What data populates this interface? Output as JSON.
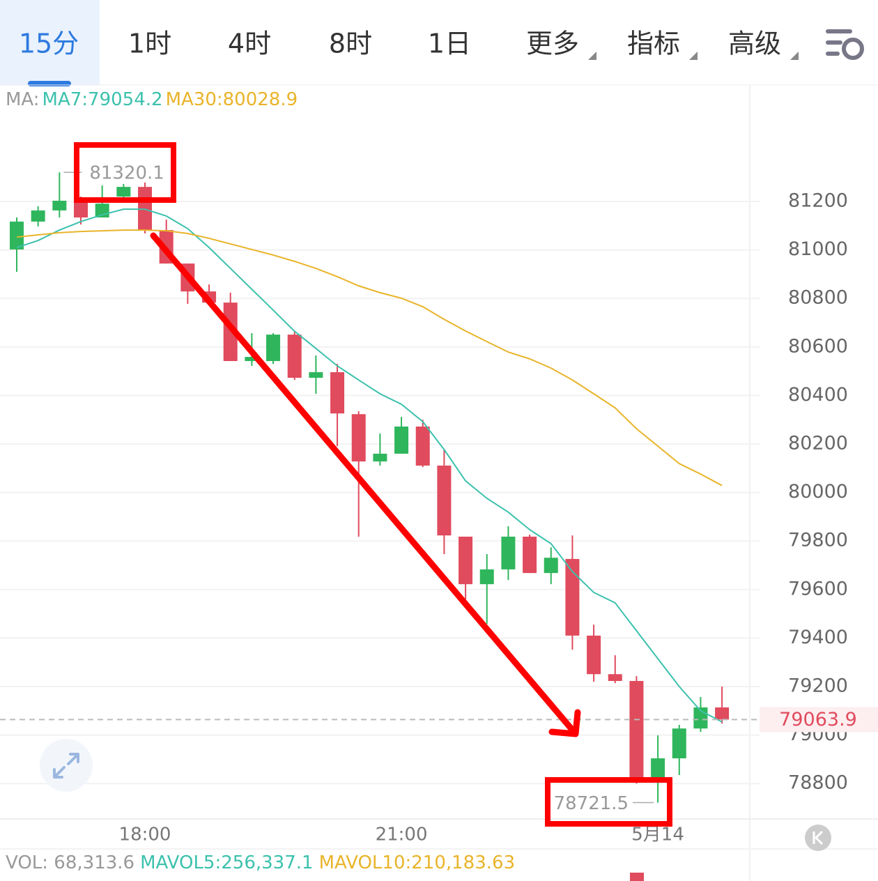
{
  "tabs": [
    "15分",
    "1时",
    "4时",
    "8时",
    "1日",
    "更多",
    "指标",
    "高级"
  ],
  "chart_data": {
    "type": "candlestick",
    "ma_header": "MA:",
    "categories": [
      null,
      null,
      null,
      null,
      null,
      null,
      "18:00",
      null,
      null,
      null,
      null,
      null,
      null,
      null,
      null,
      null,
      null,
      null,
      "21:00",
      null,
      null,
      null,
      null,
      null,
      null,
      null,
      null,
      null,
      null,
      null,
      "5月14",
      null,
      null,
      null
    ],
    "ohlc": {
      "up_color": "#2fb65c",
      "down_color": "#e04b5d",
      "open": [
        81002,
        81117,
        81163,
        81203,
        81134,
        81220,
        81260,
        81082,
        80944,
        80829,
        80783,
        80542,
        80542,
        80651,
        80473,
        80496,
        80323,
        80128,
        80160,
        80272,
        80111,
        79818,
        79622,
        79683,
        79818,
        79668,
        79726,
        79410,
        79251,
        79223,
        78826,
        78904,
        79027,
        79114
      ],
      "high": [
        81134,
        81180,
        81320.1,
        81220,
        81266,
        81272,
        81278,
        81125,
        80944,
        80858,
        80824,
        80657,
        80657,
        80663,
        80565,
        80530,
        80335,
        80243,
        80312,
        80300,
        80177,
        79818,
        79746,
        79861,
        79826,
        79774,
        79823,
        79455,
        79329,
        79243,
        78999,
        79042,
        79157,
        79200
      ],
      "low": [
        80910,
        81097,
        81134,
        81105,
        81134,
        81211,
        81068,
        80944,
        80778,
        80778,
        80542,
        80522,
        80530,
        80464,
        80407,
        80191,
        79818,
        80111,
        80160,
        80105,
        79746,
        79559,
        79458,
        79639,
        79668,
        79622,
        79352,
        79220,
        79214,
        78800,
        78721.5,
        78835,
        79013,
        79047
      ],
      "close": [
        81117,
        81163,
        81203,
        81134,
        81191,
        81260,
        81082,
        80944,
        80829,
        80783,
        80542,
        80559,
        80651,
        80473,
        80496,
        80326,
        80128,
        80160,
        80272,
        80111,
        79823,
        79622,
        79683,
        79818,
        79668,
        79731,
        79410,
        79251,
        79223,
        78826,
        78904,
        79027,
        79114,
        79063.9
      ]
    },
    "series": [
      {
        "name": "MA7",
        "label": "MA7:79054.2",
        "color": "#3cc1ad",
        "values": [
          81010,
          81039,
          81082,
          81117,
          81145,
          81168,
          81168,
          81140,
          81088,
          81010,
          80924,
          80838,
          80752,
          80665,
          80594,
          80522,
          80464,
          80407,
          80364,
          80292,
          80177,
          80048,
          79976,
          79919,
          79847,
          79789,
          79674,
          79588,
          79545,
          79430,
          79315,
          79200,
          79100,
          79054.2
        ]
      },
      {
        "name": "MA30",
        "label": "MA30:80028.9",
        "color": "#e9b42a",
        "values": [
          81053,
          81062,
          81071,
          81076,
          81079,
          81082,
          81082,
          81079,
          81068,
          81048,
          81025,
          81002,
          80979,
          80953,
          80924,
          80890,
          80852,
          80824,
          80801,
          80766,
          80714,
          80666,
          80622,
          80579,
          80551,
          80513,
          80464,
          80407,
          80349,
          80263,
          80191,
          80119,
          80076,
          80028.9
        ]
      }
    ],
    "high_mark": 81320.1,
    "low_mark": 78721.5,
    "last_price": 79063.9,
    "ylim": [
      78654,
      81680
    ],
    "yticks": [
      78800,
      79000,
      79200,
      79400,
      79600,
      79800,
      80000,
      80200,
      80400,
      80600,
      80800,
      81000,
      81200
    ],
    "grid": true,
    "volume_labels": [
      "VOL: 68,313.6",
      "MAVOL5:256,337.1",
      "MAVOL10:210,183.63"
    ]
  }
}
